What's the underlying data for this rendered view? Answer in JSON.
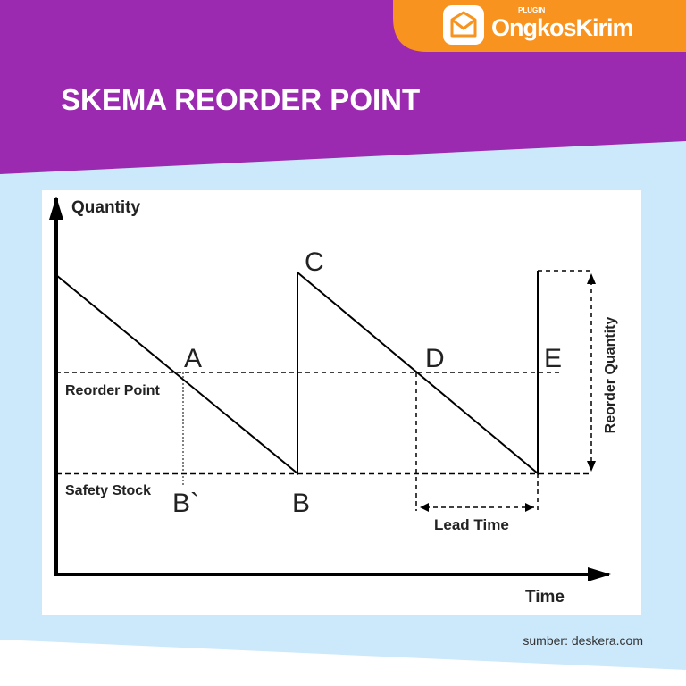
{
  "header": {
    "title": "SKEMA REORDER POINT",
    "logo": {
      "badge": "PLUGIN",
      "name": "OngkosKirim"
    }
  },
  "diagram": {
    "y_axis_label": "Quantity",
    "x_axis_label": "Time",
    "line_labels": {
      "reorder_point": "Reorder Point",
      "safety_stock": "Safety Stock",
      "lead_time": "Lead Time",
      "reorder_quantity": "Reorder Quantity"
    },
    "points": {
      "a": "A",
      "b_prime": "B`",
      "b": "B",
      "c": "C",
      "d": "D",
      "e": "E"
    }
  },
  "source": "sumber: deskera.com"
}
